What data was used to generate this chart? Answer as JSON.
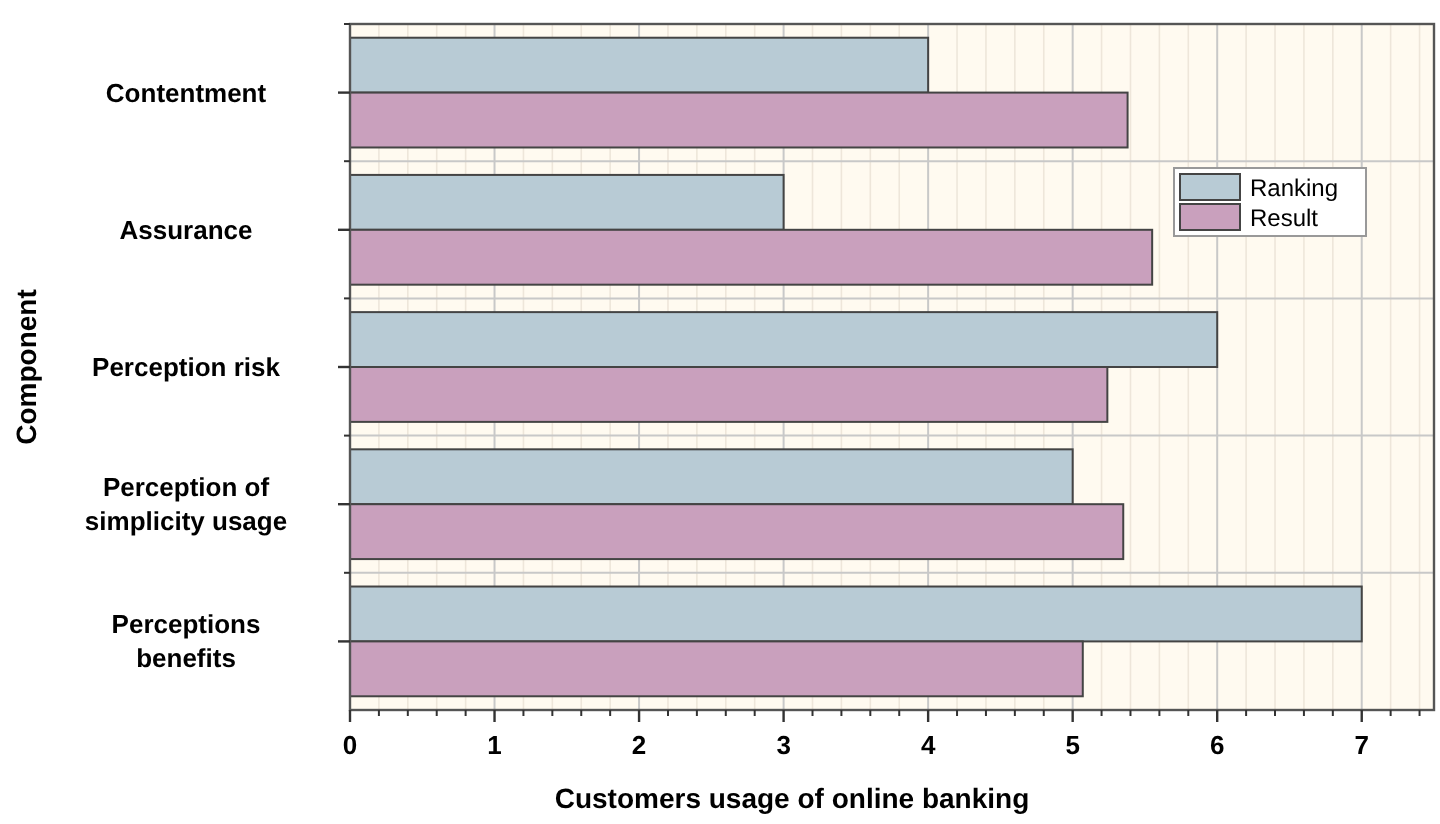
{
  "chart_data": {
    "type": "bar",
    "orientation": "horizontal",
    "xlabel": "Customers usage of online banking",
    "ylabel": "Component",
    "categories": [
      "Contentment",
      "Assurance",
      "Perception risk",
      "Perception of simplicity usage",
      "Perceptions benefits"
    ],
    "series": [
      {
        "name": "Ranking",
        "color": "#b8cbd5",
        "values": [
          4,
          3,
          6,
          5,
          7
        ]
      },
      {
        "name": "Result",
        "color": "#c9a0bd",
        "values": [
          5.38,
          5.55,
          5.24,
          5.35,
          5.07
        ]
      }
    ],
    "xlim": [
      0,
      7.5
    ],
    "xticks": [
      0,
      1,
      2,
      3,
      4,
      5,
      6,
      7
    ],
    "grid": true,
    "legend": "top right"
  }
}
